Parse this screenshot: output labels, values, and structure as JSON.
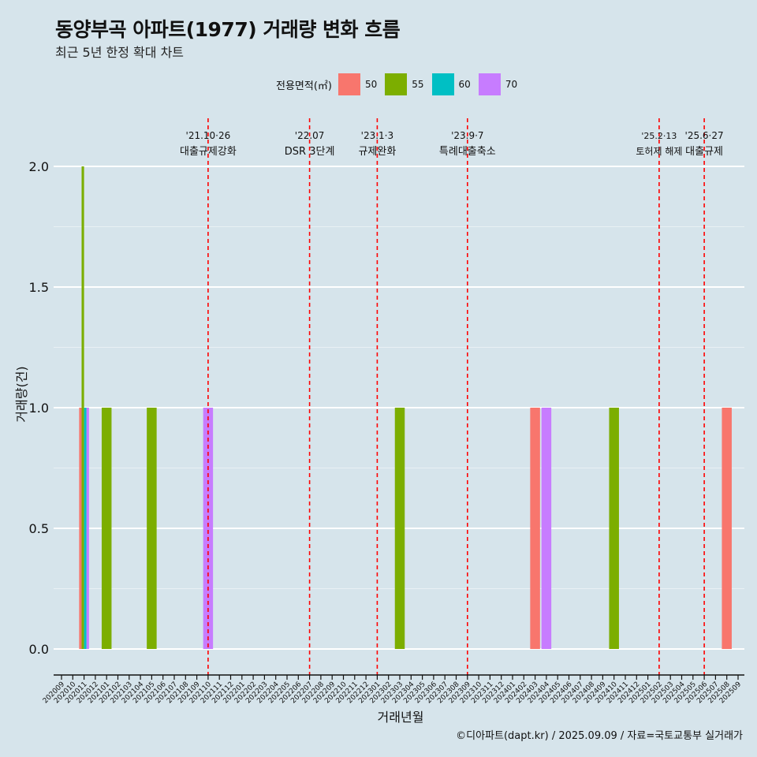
{
  "title": "동양부곡 아파트(1977) 거래량 변화 흐름",
  "subtitle": "최근 5년 한정 확대 차트",
  "caption": "©디아파트(dapt.kr) / 2025.09.09 / 자료=국토교통부 실거래가",
  "legend": {
    "title": "전용면적(㎡)",
    "items": [
      {
        "label": "50",
        "color": "#f8766d"
      },
      {
        "label": "55",
        "color": "#7cae00"
      },
      {
        "label": "60",
        "color": "#00bfc4"
      },
      {
        "label": "70",
        "color": "#c77cff"
      }
    ]
  },
  "chart_data": {
    "type": "bar",
    "title": "동양부곡 아파트(1977) 거래량 변화 흐름",
    "xlabel": "거래년월",
    "ylabel": "거래량(건)",
    "ylim": [
      -0.15,
      2.15
    ],
    "yticks": [
      0.0,
      0.5,
      1.0,
      1.5,
      2.0
    ],
    "ytick_labels": [
      "0.0",
      "0.5",
      "1.0",
      "1.5",
      "2.0"
    ],
    "categories": [
      "202009",
      "202010",
      "202011",
      "202012",
      "202101",
      "202102",
      "202103",
      "202104",
      "202105",
      "202106",
      "202107",
      "202108",
      "202109",
      "202110",
      "202111",
      "202112",
      "202201",
      "202202",
      "202203",
      "202204",
      "202205",
      "202206",
      "202207",
      "202208",
      "202209",
      "202210",
      "202211",
      "202212",
      "202301",
      "202302",
      "202303",
      "202304",
      "202305",
      "202306",
      "202307",
      "202308",
      "202309",
      "202310",
      "202311",
      "202312",
      "202401",
      "202402",
      "202403",
      "202404",
      "202405",
      "202406",
      "202407",
      "202408",
      "202409",
      "202410",
      "202411",
      "202412",
      "202501",
      "202502",
      "202503",
      "202504",
      "202505",
      "202506",
      "202507",
      "202508",
      "202509"
    ],
    "series": [
      {
        "name": "50",
        "color": "#f8766d",
        "points": [
          {
            "x": "202011",
            "y": 1
          },
          {
            "x": "202403",
            "y": 1
          },
          {
            "x": "202508",
            "y": 1
          }
        ]
      },
      {
        "name": "55",
        "color": "#7cae00",
        "points": [
          {
            "x": "202011",
            "y": 2
          },
          {
            "x": "202101",
            "y": 1
          },
          {
            "x": "202105",
            "y": 1
          },
          {
            "x": "202303",
            "y": 1
          },
          {
            "x": "202410",
            "y": 1
          }
        ]
      },
      {
        "name": "60",
        "color": "#00bfc4",
        "points": [
          {
            "x": "202011",
            "y": 1
          }
        ]
      },
      {
        "name": "70",
        "color": "#c77cff",
        "points": [
          {
            "x": "202011",
            "y": 1
          },
          {
            "x": "202110",
            "y": 1
          },
          {
            "x": "202404",
            "y": 1
          }
        ]
      }
    ],
    "events": [
      {
        "x": "202110",
        "date": "'21.10·26",
        "label": "대출규제강화"
      },
      {
        "x": "202207",
        "date": "'22.07",
        "label": "DSR 3단계"
      },
      {
        "x": "202301",
        "date": "'23.1·3",
        "label": "규제완화"
      },
      {
        "x": "202309",
        "date": "'23.9·7",
        "label": "특례대출축소"
      },
      {
        "x": "202502",
        "date": "'25.2·13",
        "label": "토허제 해제"
      },
      {
        "x": "202506",
        "date": "'25.6·27",
        "label": "대출규제"
      }
    ]
  }
}
